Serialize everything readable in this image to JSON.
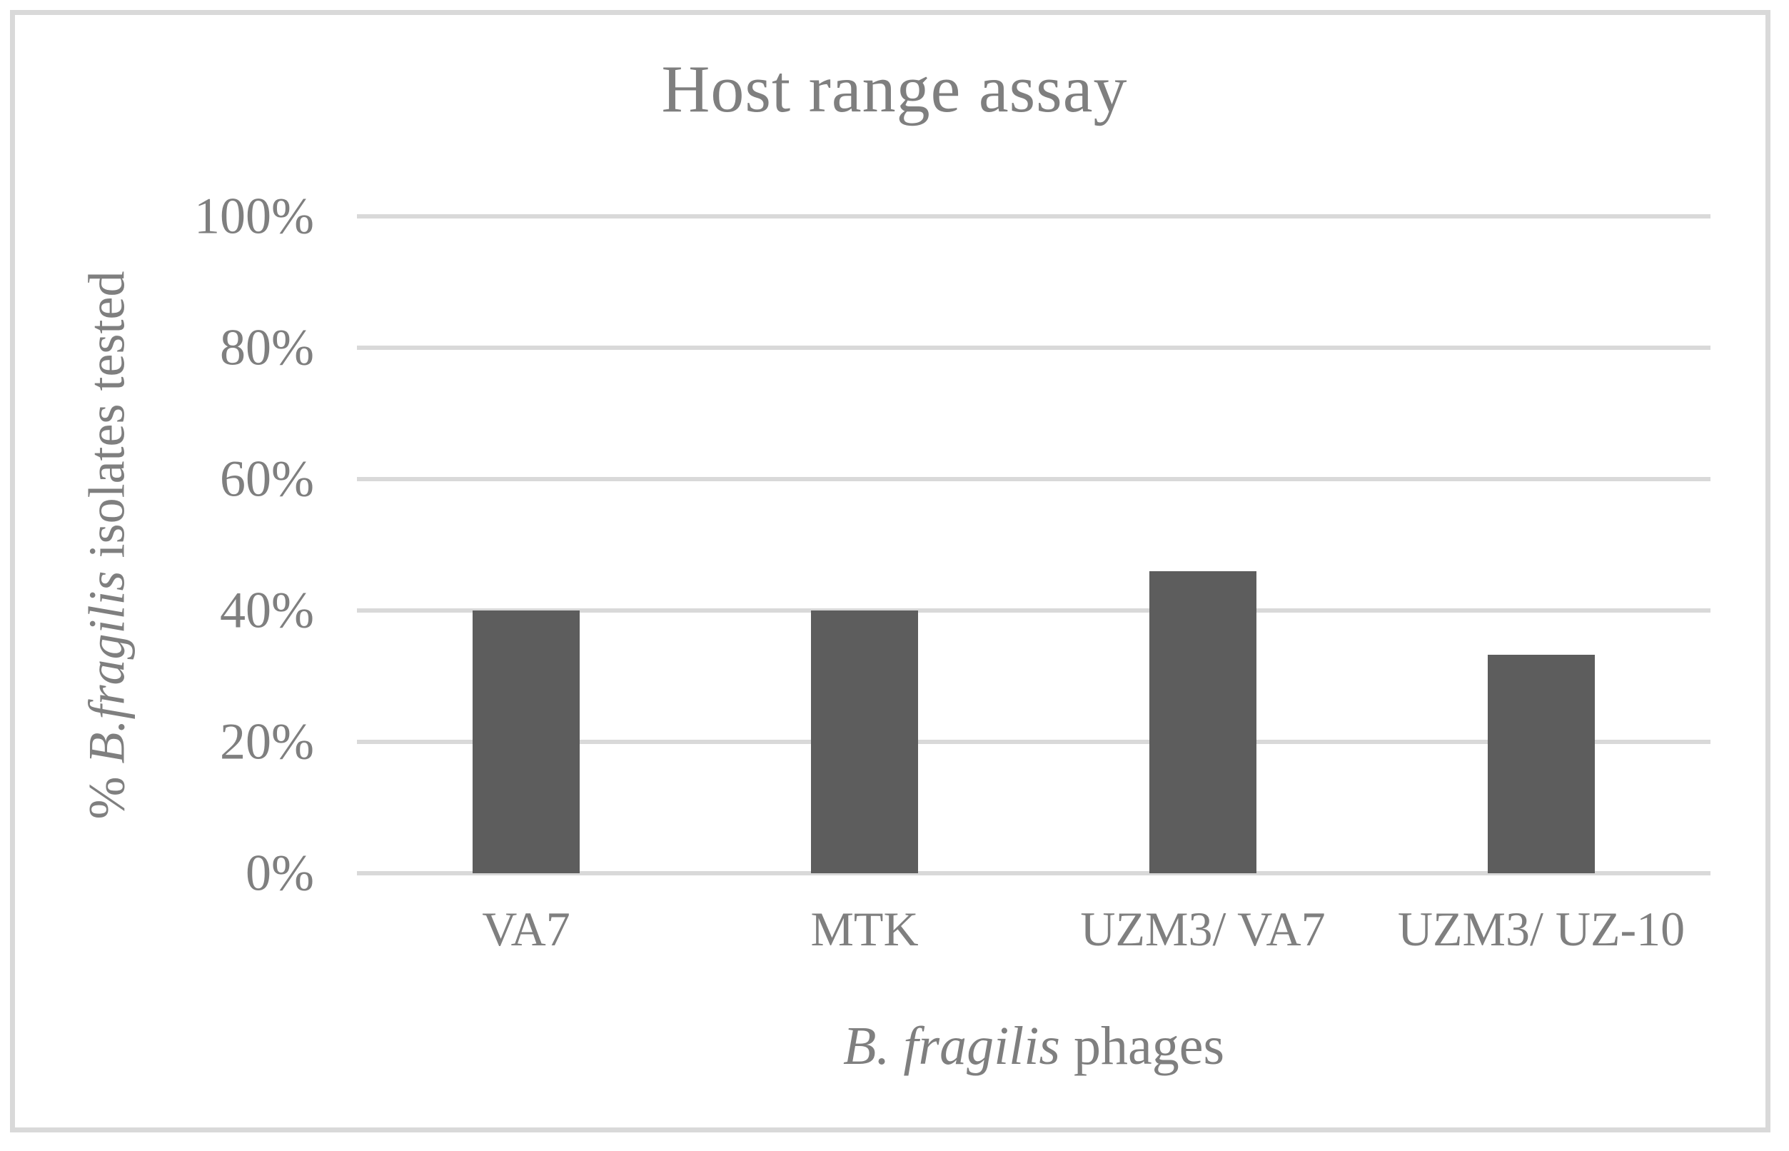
{
  "figure": {
    "background": "#ffffff",
    "frame_color": "#d9d9d9",
    "gridline_color": "#d9d9d9",
    "bar_color": "#5d5d5d",
    "text_color": "#7f7f7f"
  },
  "chart_data": {
    "type": "bar",
    "title": "Host range assay",
    "categories": [
      "VA7",
      "MTK",
      "UZM3/ VA7",
      "UZM3/ UZ-10"
    ],
    "values": [
      40,
      40,
      46,
      33.3
    ],
    "unit": "%",
    "xlabel": "B. fragilis phages",
    "xlabel_parts": {
      "italic": "B. fragilis",
      "normal": " phages"
    },
    "ylabel": "% B.fragilis isolates tested",
    "ylabel_parts": {
      "prefix": "% ",
      "italic": "B.fragilis",
      "suffix": " isolates tested"
    },
    "ylim": [
      0,
      100
    ],
    "yticks": [
      0,
      20,
      40,
      60,
      80,
      100
    ],
    "ytick_labels": [
      "0%",
      "20%",
      "40%",
      "60%",
      "80%",
      "100%"
    ],
    "grid": "horizontal-only",
    "legend": "none",
    "bar_single_series": true
  }
}
